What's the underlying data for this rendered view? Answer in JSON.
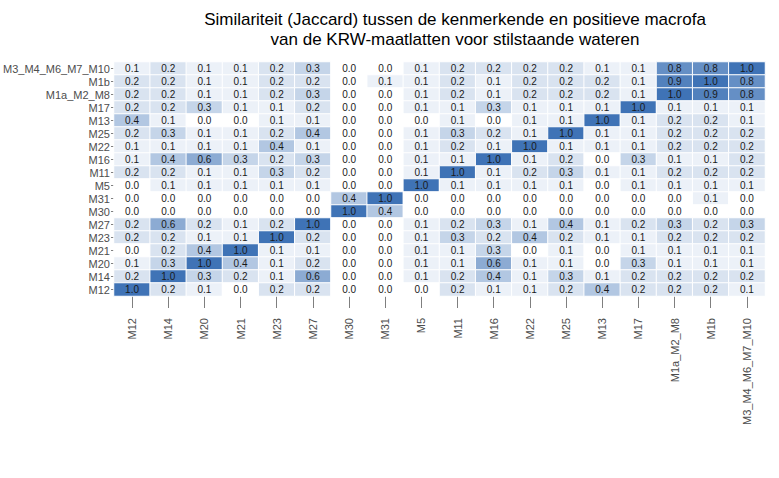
{
  "chart_data": {
    "type": "heatmap",
    "title": "Similariteit (Jaccard) tussen de kenmerkende en positieve macrofa\nvan de KRW-maatlatten voor stilstaande wateren",
    "x_categories": [
      "M12",
      "M14",
      "M20",
      "M21",
      "M23",
      "M27",
      "M30",
      "M31",
      "M5",
      "M11",
      "M16",
      "M22",
      "M25",
      "M13",
      "M17",
      "M1a_M2_M8",
      "M1b",
      "M3_M4_M6_M7_M10"
    ],
    "y_categories": [
      "M3_M4_M6_M7_M10",
      "M1b",
      "M1a_M2_M8",
      "M17",
      "M13",
      "M25",
      "M22",
      "M16",
      "M11",
      "M5",
      "M31",
      "M30",
      "M27",
      "M23",
      "M21",
      "M20",
      "M14",
      "M12"
    ],
    "cells": [
      [
        0.1,
        0.2,
        0.1,
        0.1,
        0.2,
        0.3,
        0.0,
        0.0,
        0.1,
        0.2,
        0.2,
        0.2,
        0.2,
        0.1,
        0.1,
        0.8,
        0.8,
        1.0
      ],
      [
        0.2,
        0.2,
        0.1,
        0.1,
        0.2,
        0.2,
        0.0,
        0.1,
        0.1,
        0.2,
        0.1,
        0.2,
        0.2,
        0.2,
        0.1,
        0.9,
        1.0,
        0.8
      ],
      [
        0.2,
        0.2,
        0.1,
        0.1,
        0.2,
        0.3,
        0.0,
        0.0,
        0.1,
        0.2,
        0.1,
        0.2,
        0.2,
        0.2,
        0.1,
        1.0,
        0.9,
        0.8
      ],
      [
        0.2,
        0.2,
        0.3,
        0.1,
        0.1,
        0.2,
        0.0,
        0.0,
        0.1,
        0.1,
        0.3,
        0.1,
        0.1,
        0.1,
        1.0,
        0.1,
        0.1,
        0.1
      ],
      [
        0.4,
        0.1,
        0.0,
        0.0,
        0.1,
        0.1,
        0.0,
        0.0,
        0.0,
        0.1,
        0.0,
        0.1,
        0.1,
        1.0,
        0.1,
        0.2,
        0.2,
        0.1
      ],
      [
        0.2,
        0.3,
        0.1,
        0.1,
        0.2,
        0.4,
        0.0,
        0.0,
        0.1,
        0.3,
        0.2,
        0.1,
        1.0,
        0.1,
        0.1,
        0.2,
        0.2,
        0.2
      ],
      [
        0.1,
        0.1,
        0.1,
        0.1,
        0.4,
        0.1,
        0.0,
        0.0,
        0.1,
        0.2,
        0.1,
        1.0,
        0.1,
        0.1,
        0.1,
        0.2,
        0.2,
        0.2
      ],
      [
        0.1,
        0.4,
        0.6,
        0.3,
        0.2,
        0.3,
        0.0,
        0.0,
        0.1,
        0.1,
        1.0,
        0.1,
        0.2,
        0.0,
        0.3,
        0.1,
        0.1,
        0.2
      ],
      [
        0.2,
        0.2,
        0.1,
        0.1,
        0.3,
        0.2,
        0.0,
        0.0,
        0.1,
        1.0,
        0.1,
        0.2,
        0.3,
        0.1,
        0.1,
        0.2,
        0.2,
        0.2
      ],
      [
        0.0,
        0.1,
        0.1,
        0.1,
        0.1,
        0.1,
        0.0,
        0.0,
        1.0,
        0.1,
        0.1,
        0.1,
        0.1,
        0.0,
        0.1,
        0.1,
        0.1,
        0.1
      ],
      [
        0.0,
        0.0,
        0.0,
        0.0,
        0.0,
        0.0,
        0.4,
        1.0,
        0.0,
        0.0,
        0.0,
        0.0,
        0.0,
        0.0,
        0.0,
        0.0,
        0.1,
        0.0
      ],
      [
        0.0,
        0.0,
        0.0,
        0.0,
        0.0,
        0.0,
        1.0,
        0.4,
        0.0,
        0.0,
        0.0,
        0.0,
        0.0,
        0.0,
        0.0,
        0.0,
        0.0,
        0.0
      ],
      [
        0.2,
        0.6,
        0.2,
        0.1,
        0.2,
        1.0,
        0.0,
        0.0,
        0.1,
        0.2,
        0.3,
        0.1,
        0.4,
        0.1,
        0.2,
        0.3,
        0.2,
        0.3
      ],
      [
        0.2,
        0.2,
        0.1,
        0.1,
        1.0,
        0.2,
        0.0,
        0.0,
        0.1,
        0.3,
        0.2,
        0.4,
        0.2,
        0.1,
        0.1,
        0.2,
        0.2,
        0.2
      ],
      [
        0.0,
        0.2,
        0.4,
        1.0,
        0.1,
        0.1,
        0.0,
        0.0,
        0.1,
        0.1,
        0.3,
        0.0,
        0.1,
        0.0,
        0.1,
        0.1,
        0.1,
        0.1
      ],
      [
        0.1,
        0.3,
        1.0,
        0.4,
        0.1,
        0.2,
        0.0,
        0.0,
        0.1,
        0.1,
        0.6,
        0.1,
        0.1,
        0.0,
        0.3,
        0.1,
        0.1,
        0.1
      ],
      [
        0.2,
        1.0,
        0.3,
        0.2,
        0.1,
        0.6,
        0.0,
        0.0,
        0.1,
        0.2,
        0.4,
        0.1,
        0.3,
        0.1,
        0.2,
        0.2,
        0.2,
        0.2
      ],
      [
        1.0,
        0.2,
        0.1,
        0.0,
        0.2,
        0.2,
        0.0,
        0.0,
        0.0,
        0.2,
        0.1,
        0.1,
        0.2,
        0.4,
        0.2,
        0.2,
        0.2,
        0.1
      ]
    ],
    "value_labels": [
      [
        "0.1",
        "0.2",
        "0.1",
        "0.1",
        "0.2",
        "0.3",
        "0.0",
        "0.0",
        "0.1",
        "0.2",
        "0.2",
        "0.2",
        "0.2",
        "0.1",
        "0.1",
        "0.8",
        "0.8",
        "1.0"
      ],
      [
        "0.2",
        "0.2",
        "0.1",
        "0.1",
        "0.2",
        "0.2",
        "0.0",
        "0.1",
        "0.1",
        "0.2",
        "0.1",
        "0.2",
        "0.2",
        "0.2",
        "0.1",
        "0.9",
        "1.0",
        "0.8"
      ],
      [
        "0.2",
        "0.2",
        "0.1",
        "0.1",
        "0.2",
        "0.3",
        "0.0",
        "0.0",
        "0.1",
        "0.2",
        "0.1",
        "0.2",
        "0.2",
        "0.2",
        "0.1",
        "1.0",
        "0.9",
        "0.8"
      ],
      [
        "0.2",
        "0.2",
        "0.3",
        "0.1",
        "0.1",
        "0.2",
        "0.0",
        "0.0",
        "0.1",
        "0.1",
        "0.3",
        "0.1",
        "0.1",
        "0.1",
        "1.0",
        "0.1",
        "0.1",
        "0.1"
      ],
      [
        "0.4",
        "0.1",
        "0.0",
        "0.0",
        "0.1",
        "0.1",
        "0.0",
        "0.0",
        "0.0",
        "0.1",
        "0.0",
        "0.1",
        "0.1",
        "1.0",
        "0.1",
        "0.2",
        "0.2",
        "0.1"
      ],
      [
        "0.2",
        "0.3",
        "0.1",
        "0.1",
        "0.2",
        "0.4",
        "0.0",
        "0.0",
        "0.1",
        "0.3",
        "0.2",
        "0.1",
        "1.0",
        "0.1",
        "0.1",
        "0.2",
        "0.2",
        "0.2"
      ],
      [
        "0.1",
        "0.1",
        "0.1",
        "0.1",
        "0.4",
        "0.1",
        "0.0",
        "0.0",
        "0.1",
        "0.2",
        "0.1",
        "1.0",
        "0.1",
        "0.1",
        "0.1",
        "0.2",
        "0.2",
        "0.2"
      ],
      [
        "0.1",
        "0.4",
        "0.6",
        "0.3",
        "0.2",
        "0.3",
        "0.0",
        "0.0",
        "0.1",
        "0.1",
        "1.0",
        "0.1",
        "0.2",
        "0.0",
        "0.3",
        "0.1",
        "0.1",
        "0.2"
      ],
      [
        "0.2",
        "0.2",
        "0.1",
        "0.1",
        "0.3",
        "0.2",
        "0.0",
        "0.0",
        "0.1",
        "1.0",
        "0.1",
        "0.2",
        "0.3",
        "0.1",
        "0.1",
        "0.2",
        "0.2",
        "0.2"
      ],
      [
        "0.0",
        "0.1",
        "0.1",
        "0.1",
        "0.1",
        "0.1",
        "0.0",
        "0.0",
        "1.0",
        "0.1",
        "0.1",
        "0.1",
        "0.1",
        "0.0",
        "0.1",
        "0.1",
        "0.1",
        "0.1"
      ],
      [
        "0.0",
        "0.0",
        "0.0",
        "0.0",
        "0.0",
        "0.0",
        "0.4",
        "1.0",
        "0.0",
        "0.0",
        "0.0",
        "0.0",
        "0.0",
        "0.0",
        "0.0",
        "0.0",
        "0.1",
        "0.0"
      ],
      [
        "0.0",
        "0.0",
        "0.0",
        "0.0",
        "0.0",
        "0.0",
        "1.0",
        "0.4",
        "0.0",
        "0.0",
        "0.0",
        "0.0",
        "0.0",
        "0.0",
        "0.0",
        "0.0",
        "0.0",
        "0.0"
      ],
      [
        "0.2",
        "0.6",
        "0.2",
        "0.1",
        "0.2",
        "1.0",
        "0.0",
        "0.0",
        "0.1",
        "0.2",
        "0.3",
        "0.1",
        "0.4",
        "0.1",
        "0.2",
        "0.3",
        "0.2",
        "0.3"
      ],
      [
        "0.2",
        "0.2",
        "0.1",
        "0.1",
        "1.0",
        "0.2",
        "0.0",
        "0.0",
        "0.1",
        "0.3",
        "0.2",
        "0.4",
        "0.2",
        "0.1",
        "0.1",
        "0.2",
        "0.2",
        "0.2"
      ],
      [
        "0.0",
        "0.2",
        "0.4",
        "1.0",
        "0.1",
        "0.1",
        "0.0",
        "0.0",
        "0.1",
        "0.1",
        "0.3",
        "0.0",
        "0.1",
        "0.0",
        "0.1",
        "0.1",
        "0.1",
        "0.1"
      ],
      [
        "0.1",
        "0.3",
        "1.0",
        "0.4",
        "0.1",
        "0.2",
        "0.0",
        "0.0",
        "0.1",
        "0.1",
        "0.6",
        "0.1",
        "0.1",
        "0.0",
        "0.3",
        "0.1",
        "0.1",
        "0.1"
      ],
      [
        "0.2",
        "1.0",
        "0.3",
        "0.2",
        "0.1",
        "0.6",
        "0.0",
        "0.0",
        "0.1",
        "0.2",
        "0.4",
        "0.1",
        "0.3",
        "0.1",
        "0.2",
        "0.2",
        "0.2",
        "0.2"
      ],
      [
        "1.0",
        "0.2",
        "0.1",
        "0.0",
        "0.2",
        "0.2",
        "0.0",
        "0.0",
        "0.0",
        "0.2",
        "0.1",
        "0.1",
        "0.2",
        "0.4",
        "0.2",
        "0.2",
        "0.2",
        "0.1"
      ]
    ],
    "zlim": [
      0,
      1
    ],
    "color": [
      "#ffffff",
      "#3f73b6"
    ],
    "data_labels": true
  }
}
